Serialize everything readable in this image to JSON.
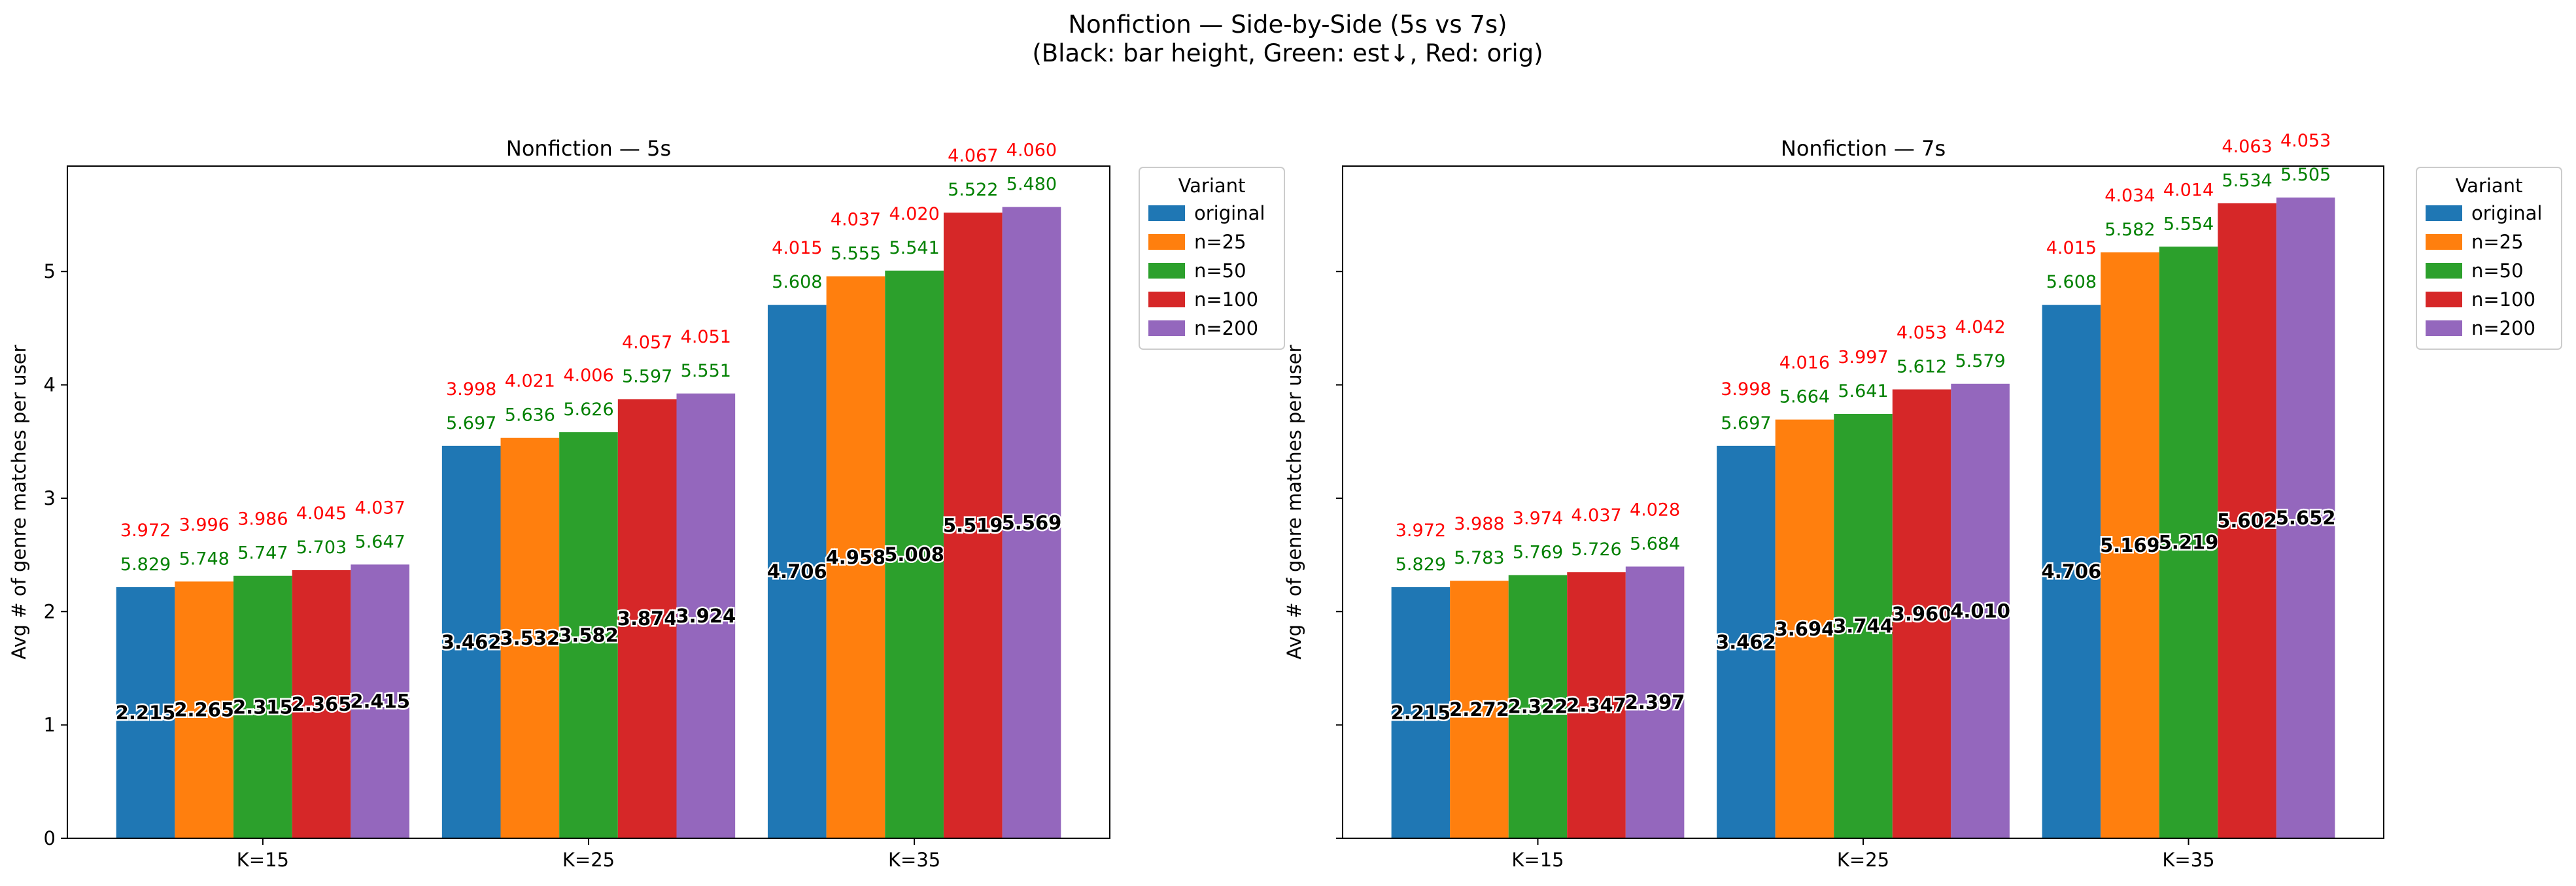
{
  "title_lines": [
    "Nonfiction — Side-by-Side (5s vs 7s)",
    "(Black: bar height, Green: est↓, Red: orig)"
  ],
  "colors": {
    "original": "#1f77b4",
    "n=25": "#ff7f0e",
    "n=50": "#2ca02c",
    "n=100": "#d62728",
    "n=200": "#9467bd",
    "green_label": "#008000",
    "red_label": "#ff0000"
  },
  "chart_data": [
    {
      "type": "bar",
      "title": "Nonfiction — 5s",
      "ylabel": "Avg # of genre matches per user",
      "xlabel": "",
      "ylim": [
        0,
        5.93
      ],
      "yticks": [
        0,
        1,
        2,
        3,
        4,
        5
      ],
      "grid": false,
      "legend": {
        "title": "Variant",
        "placement": "outside-top-right"
      },
      "categories": [
        "K=15",
        "K=25",
        "K=35"
      ],
      "series": [
        {
          "name": "original",
          "values": [
            2.215,
            3.462,
            4.706
          ],
          "green": [
            "5.829",
            "5.697",
            "5.608"
          ],
          "red": [
            "3.972",
            "3.998",
            "4.015"
          ],
          "black": [
            "2.215",
            "3.462",
            "4.706"
          ]
        },
        {
          "name": "n=25",
          "values": [
            2.265,
            3.532,
            4.958
          ],
          "green": [
            "5.748",
            "5.636",
            "5.555"
          ],
          "red": [
            "3.996",
            "4.021",
            "4.037"
          ],
          "black": [
            "2.265",
            "3.532",
            "4.958"
          ]
        },
        {
          "name": "n=50",
          "values": [
            2.315,
            3.582,
            5.008
          ],
          "green": [
            "5.747",
            "5.626",
            "5.541"
          ],
          "red": [
            "3.986",
            "4.006",
            "4.020"
          ],
          "black": [
            "2.315",
            "3.582",
            "5.008"
          ]
        },
        {
          "name": "n=100",
          "values": [
            2.365,
            3.874,
            5.519
          ],
          "green": [
            "5.703",
            "5.597",
            "5.522"
          ],
          "red": [
            "4.045",
            "4.057",
            "4.067"
          ],
          "black": [
            "2.365",
            "3.874",
            "5.519"
          ]
        },
        {
          "name": "n=200",
          "values": [
            2.415,
            3.924,
            5.569
          ],
          "green": [
            "5.647",
            "5.551",
            "5.480"
          ],
          "red": [
            "4.037",
            "4.051",
            "4.060"
          ],
          "black": [
            "2.415",
            "3.924",
            "5.569"
          ]
        }
      ]
    },
    {
      "type": "bar",
      "title": "Nonfiction — 7s",
      "ylabel": "Avg # of genre matches per user",
      "xlabel": "",
      "ylim": [
        0,
        5.93
      ],
      "yticks": [
        0,
        1,
        2,
        3,
        4,
        5
      ],
      "grid": false,
      "legend": {
        "title": "Variant",
        "placement": "outside-top-right"
      },
      "categories": [
        "K=15",
        "K=25",
        "K=35"
      ],
      "series": [
        {
          "name": "original",
          "values": [
            2.215,
            3.462,
            4.706
          ],
          "green": [
            "5.829",
            "5.697",
            "5.608"
          ],
          "red": [
            "3.972",
            "3.998",
            "4.015"
          ],
          "black": [
            "2.215",
            "3.462",
            "4.706"
          ]
        },
        {
          "name": "n=25",
          "values": [
            2.272,
            3.694,
            5.169
          ],
          "green": [
            "5.783",
            "5.664",
            "5.582"
          ],
          "red": [
            "3.988",
            "4.016",
            "4.034"
          ],
          "black": [
            "2.272",
            "3.694",
            "5.169"
          ]
        },
        {
          "name": "n=50",
          "values": [
            2.322,
            3.744,
            5.219
          ],
          "green": [
            "5.769",
            "5.641",
            "5.554"
          ],
          "red": [
            "3.974",
            "3.997",
            "4.014"
          ],
          "black": [
            "2.322",
            "3.744",
            "5.219"
          ]
        },
        {
          "name": "n=100",
          "values": [
            2.347,
            3.96,
            5.602
          ],
          "green": [
            "5.726",
            "5.612",
            "5.534"
          ],
          "red": [
            "4.037",
            "4.053",
            "4.063"
          ],
          "black": [
            "2.347",
            "3.960",
            "5.602"
          ]
        },
        {
          "name": "n=200",
          "values": [
            2.397,
            4.01,
            5.652
          ],
          "green": [
            "5.684",
            "5.579",
            "5.505"
          ],
          "red": [
            "4.028",
            "4.042",
            "4.053"
          ],
          "black": [
            "2.397",
            "4.010",
            "5.652"
          ]
        }
      ]
    }
  ]
}
